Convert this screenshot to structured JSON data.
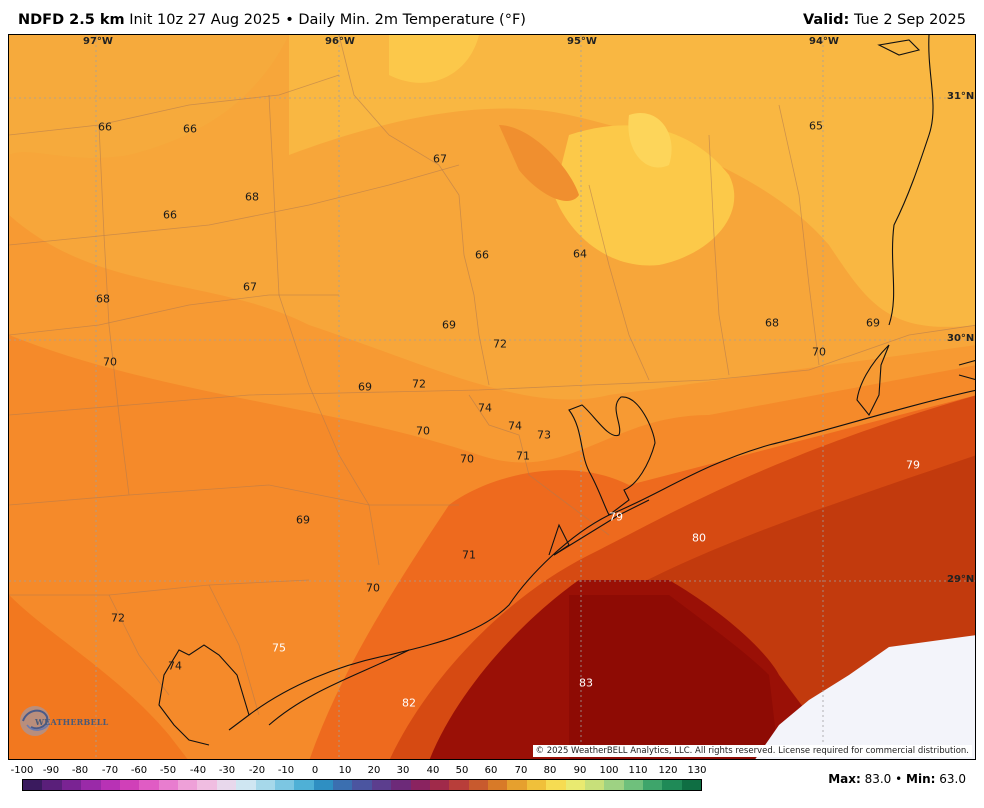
{
  "header": {
    "product": "NDFD 2.5 km",
    "init": "Init 10z 27 Aug 2025",
    "bullet": "•",
    "field": "Daily Min. 2m Temperature (°F)",
    "valid_label": "Valid:",
    "valid_date": "Tue 2 Sep 2025"
  },
  "map": {
    "lon_labels": [
      "97°W",
      "96°W",
      "95°W",
      "94°W"
    ],
    "lat_labels": [
      "31°N",
      "30°N",
      "29°N"
    ],
    "values": [
      "66",
      "66",
      "67",
      "65",
      "68",
      "66",
      "66",
      "64",
      "67",
      "68",
      "69",
      "72",
      "68",
      "69",
      "70",
      "70",
      "69",
      "72",
      "74",
      "74",
      "73",
      "70",
      "70",
      "71",
      "79",
      "69",
      "79",
      "80",
      "71",
      "70",
      "72",
      "75",
      "74",
      "83",
      "82"
    ],
    "logo_text": "WEATHERBELL",
    "copyright": "© 2025 WeatherBELL Analytics, LLC. All rights reserved. License required for commercial distribution."
  },
  "colorbar": {
    "ticks": [
      "-100",
      "-90",
      "-80",
      "-70",
      "-60",
      "-50",
      "-40",
      "-30",
      "-20",
      "-10",
      "0",
      "10",
      "20",
      "30",
      "40",
      "50",
      "60",
      "70",
      "80",
      "90",
      "100",
      "110",
      "120",
      "130"
    ],
    "colors": [
      "#3a1a5e",
      "#5a1f7a",
      "#7a2393",
      "#9a2aa8",
      "#b832b5",
      "#d040b8",
      "#e05cc4",
      "#e87dcf",
      "#eea0d8",
      "#f0bde1",
      "#e8d8ec",
      "#cfe6f2",
      "#a6d8ea",
      "#7cc6e2",
      "#4fb0d6",
      "#2f8fc2",
      "#3b6fb0",
      "#4b55a0",
      "#5c3e8e",
      "#6d2a79",
      "#8a2360",
      "#a02a4a",
      "#b83e3a",
      "#c85a2e",
      "#d87a28",
      "#e6a02e",
      "#f0c03a",
      "#f6dc52",
      "#e9ea70",
      "#c8e07a",
      "#9ed283",
      "#6fc07c",
      "#3ea56b",
      "#1f8a57",
      "#0f6e43"
    ],
    "max_label": "Max:",
    "max_value": "83.0",
    "bullet": "•",
    "min_label": "Min:",
    "min_value": "63.0"
  }
}
